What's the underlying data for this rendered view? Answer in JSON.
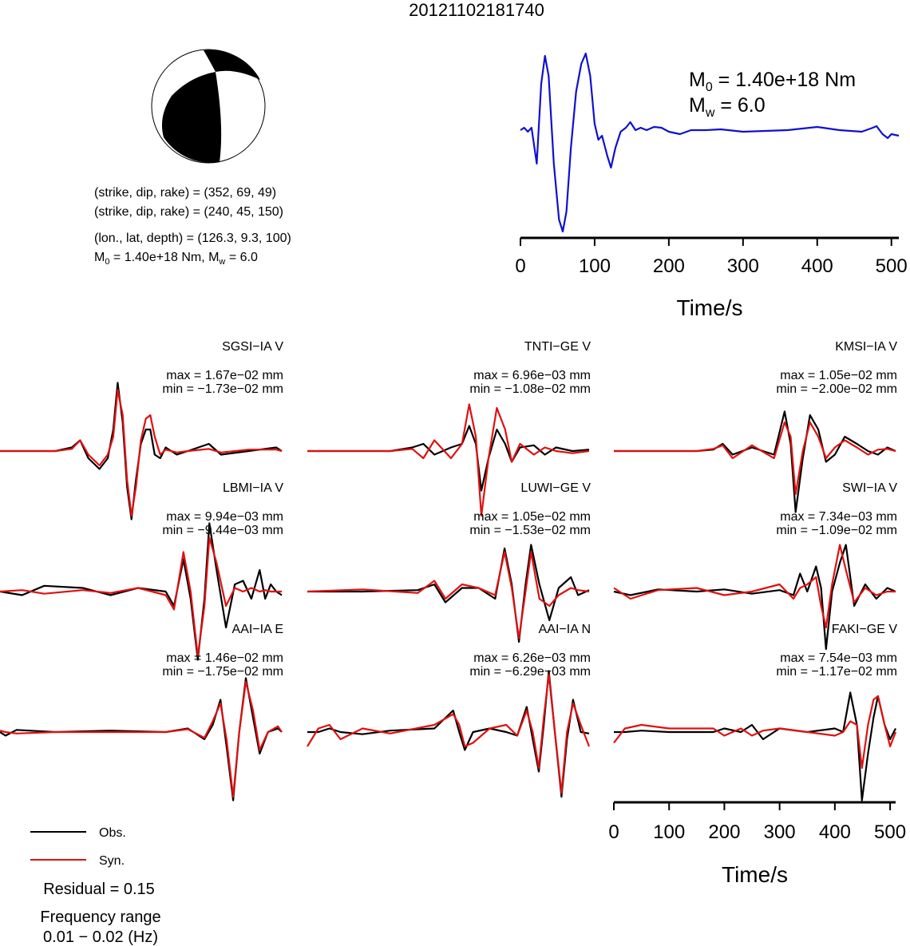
{
  "title": "20121102181740",
  "mechanism": {
    "lines": [
      "(strike, dip, rake) = (352, 69, 49)",
      "(strike, dip, rake) = (240, 45, 150)",
      "(lon., lat, depth) = (126.3, 9.3, 100)"
    ],
    "moment_line": [
      "M",
      "0",
      " = 1.40e+18 Nm, M",
      "w",
      " = 6.0"
    ]
  },
  "notes": [
    "Residual = 0.15",
    "Frequency range",
    "0.01 − 0.02 (Hz)"
  ],
  "chart_data": [
    {
      "type": "line",
      "xlabel": "Time/s",
      "xlim": [
        0,
        510
      ],
      "xticks": [
        0,
        100,
        200,
        300,
        400,
        500
      ],
      "ylim": [
        -1.33,
        1.05
      ],
      "annotations": [
        [
          "M",
          "0",
          " = 1.40e+18 Nm"
        ],
        [
          "M",
          "w",
          " = 6.0"
        ]
      ],
      "x": [
        0,
        5,
        10,
        15,
        22,
        28,
        33,
        38,
        45,
        52,
        57,
        62,
        68,
        75,
        82,
        88,
        94,
        100,
        105,
        110,
        117,
        122,
        128,
        135,
        142,
        148,
        155,
        162,
        170,
        180,
        190,
        200,
        215,
        230,
        250,
        270,
        300,
        330,
        360,
        400,
        430,
        460,
        475,
        480,
        488,
        495,
        500,
        510
      ],
      "series": [
        {
          "color": "#1010d0",
          "values": [
            0.02,
            0.05,
            0.0,
            0.05,
            -0.4,
            0.6,
            0.95,
            0.7,
            -0.4,
            -1.1,
            -1.25,
            -1.0,
            -0.2,
            0.5,
            0.85,
            0.98,
            0.7,
            0.1,
            -0.1,
            -0.05,
            -0.3,
            -0.45,
            -0.2,
            0.0,
            0.05,
            0.12,
            0.02,
            0.05,
            0.02,
            0.06,
            0.05,
            0.0,
            -0.03,
            0.02,
            0.02,
            0.03,
            0.0,
            0.01,
            0.02,
            0.06,
            0.02,
            0.0,
            0.05,
            0.07,
            -0.03,
            -0.08,
            -0.03,
            -0.05
          ]
        }
      ]
    },
    {
      "type": "line",
      "title": "SGSI−IA V",
      "annotations": [
        "max = 1.67e−02 mm",
        "min = −1.73e−02 mm"
      ],
      "xlim": [
        0,
        510
      ],
      "ylim": [
        -1,
        1
      ],
      "x": [
        0,
        100,
        130,
        145,
        160,
        180,
        195,
        205,
        213,
        222,
        230,
        238,
        246,
        255,
        264,
        272,
        280,
        290,
        300,
        320,
        340,
        378,
        400,
        450,
        500,
        510
      ],
      "series": [
        {
          "name": "Obs.",
          "color": "#000000",
          "values": [
            0,
            0,
            0.05,
            0.15,
            -0.1,
            -0.25,
            -0.1,
            0.3,
            0.95,
            0.4,
            -0.5,
            -0.95,
            -0.4,
            0.1,
            0.3,
            0.3,
            -0.05,
            -0.1,
            0.05,
            -0.05,
            0,
            0.1,
            -0.05,
            0,
            0.05,
            0
          ]
        },
        {
          "name": "Syn.",
          "color": "#e01010",
          "values": [
            0,
            0,
            0.03,
            0.15,
            -0.05,
            -0.2,
            -0.05,
            0.2,
            0.85,
            0.5,
            -0.4,
            -0.9,
            -0.5,
            0.15,
            0.45,
            0.5,
            0.2,
            -0.05,
            0.02,
            -0.02,
            0,
            0.03,
            -0.02,
            0.02,
            0.02,
            0
          ]
        }
      ]
    },
    {
      "type": "line",
      "title": "TNTI−GE V",
      "annotations": [
        "max = 6.96e−03 mm",
        "min = −1.08e−02 mm"
      ],
      "xlim": [
        0,
        510
      ],
      "ylim": [
        -1,
        1
      ],
      "x": [
        0,
        150,
        190,
        210,
        230,
        260,
        280,
        293,
        305,
        315,
        328,
        343,
        358,
        370,
        385,
        410,
        430,
        450,
        480,
        510
      ],
      "series": [
        {
          "color": "#000000",
          "values": [
            0,
            0,
            0.05,
            0.1,
            -0.05,
            0.05,
            0.1,
            0.35,
            0.1,
            -0.55,
            -0.1,
            0.3,
            0.1,
            -0.15,
            0.05,
            0.08,
            -0.05,
            0.05,
            0,
            0.02
          ]
        },
        {
          "color": "#e01010",
          "values": [
            0,
            0,
            0.03,
            -0.1,
            0.15,
            -0.1,
            0.1,
            0.65,
            0.2,
            -0.9,
            -0.1,
            0.6,
            0.3,
            -0.15,
            0.1,
            -0.05,
            0.05,
            0,
            -0.03,
            0
          ]
        }
      ]
    },
    {
      "type": "line",
      "title": "KMSI−IA V",
      "annotations": [
        "max = 1.05e−02 mm",
        "min = −2.00e−02 mm"
      ],
      "xlim": [
        0,
        510
      ],
      "ylim": [
        -1,
        1
      ],
      "x": [
        0,
        150,
        180,
        197,
        215,
        250,
        290,
        309,
        320,
        329,
        342,
        355,
        370,
        384,
        400,
        418,
        440,
        460,
        478,
        495,
        510
      ],
      "series": [
        {
          "color": "#000000",
          "values": [
            0,
            0,
            0.02,
            0.1,
            -0.05,
            0.05,
            -0.05,
            0.55,
            0.1,
            -0.85,
            -0.1,
            0.5,
            0.3,
            -0.15,
            -0.05,
            0.2,
            0.1,
            0.0,
            -0.05,
            0.05,
            0
          ]
        },
        {
          "color": "#e01010",
          "values": [
            0,
            0,
            0.03,
            0.08,
            -0.1,
            0.08,
            -0.1,
            0.4,
            0.2,
            -0.6,
            0.0,
            0.4,
            0.2,
            -0.1,
            0.05,
            0.15,
            0.05,
            -0.05,
            0.02,
            0.03,
            0
          ]
        }
      ]
    },
    {
      "type": "line",
      "title": "LBMI−IA V",
      "annotations": [
        "max = 9.94e−03 mm",
        "min = −9.44e−03 mm"
      ],
      "xlim": [
        0,
        510
      ],
      "ylim": [
        -1,
        1
      ],
      "x": [
        0,
        40,
        80,
        150,
        200,
        250,
        300,
        315,
        332,
        345,
        358,
        370,
        379,
        392,
        409,
        425,
        440,
        455,
        470,
        480,
        490,
        500,
        510
      ],
      "series": [
        {
          "color": "#000000",
          "values": [
            0,
            -0.05,
            0.08,
            0.05,
            -0.05,
            0.05,
            0.0,
            -0.2,
            0.45,
            -0.1,
            -0.95,
            -0.1,
            0.95,
            0.3,
            -0.5,
            0.1,
            0.15,
            -0.1,
            0.3,
            -0.1,
            0.1,
            0.0,
            -0.05
          ]
        },
        {
          "color": "#e01010",
          "values": [
            0,
            0.02,
            -0.03,
            0.02,
            -0.02,
            0.05,
            -0.05,
            -0.25,
            0.55,
            0.0,
            -0.9,
            -0.2,
            0.75,
            0.4,
            -0.2,
            0.05,
            0.0,
            0.05,
            0.0,
            0.02,
            0,
            0,
            0
          ]
        }
      ]
    },
    {
      "type": "line",
      "title": "LUWI−GE V",
      "annotations": [
        "max = 1.05e−02 mm",
        "min = −1.53e−02 mm"
      ],
      "xlim": [
        0,
        510
      ],
      "ylim": [
        -1,
        1
      ],
      "x": [
        0,
        100,
        200,
        230,
        250,
        280,
        310,
        340,
        357,
        370,
        383,
        395,
        405,
        420,
        438,
        455,
        477,
        490,
        510
      ],
      "series": [
        {
          "color": "#000000",
          "values": [
            0,
            0,
            0.02,
            0.1,
            -0.15,
            0.05,
            0.05,
            -0.1,
            0.6,
            0.1,
            -0.7,
            0.1,
            0.65,
            0.1,
            -0.4,
            0.05,
            0.2,
            -0.05,
            0.02
          ]
        },
        {
          "color": "#e01010",
          "values": [
            0,
            0.03,
            -0.02,
            0.15,
            -0.1,
            0.1,
            0.05,
            -0.05,
            0.55,
            0.05,
            -0.65,
            0.0,
            0.55,
            -0.1,
            -0.2,
            -0.05,
            0.05,
            0.02,
            0
          ]
        }
      ]
    },
    {
      "type": "line",
      "title": "SWI−IA V",
      "annotations": [
        "max = 7.34e−03 mm",
        "min = −1.09e−02 mm"
      ],
      "xlim": [
        0,
        510
      ],
      "ylim": [
        -1,
        1
      ],
      "x": [
        0,
        30,
        80,
        150,
        200,
        250,
        300,
        325,
        337,
        350,
        366,
        375,
        384,
        395,
        409,
        420,
        435,
        455,
        475,
        495,
        510
      ],
      "series": [
        {
          "color": "#000000",
          "values": [
            0,
            -0.05,
            0.03,
            0.0,
            0.03,
            -0.03,
            0.02,
            -0.05,
            0.25,
            0.0,
            0.35,
            0.05,
            -0.8,
            0.0,
            0.4,
            0.65,
            -0.2,
            0.1,
            -0.1,
            0.05,
            0
          ]
        },
        {
          "color": "#e01010",
          "values": [
            0.05,
            -0.1,
            0.02,
            0.05,
            -0.05,
            0.0,
            0.1,
            -0.1,
            0.05,
            0.1,
            0.2,
            -0.2,
            -0.5,
            0.1,
            0.65,
            0.3,
            -0.15,
            0.05,
            -0.05,
            0.0,
            0
          ]
        }
      ]
    },
    {
      "type": "line",
      "title": "AAI−IA E",
      "annotations": [
        "max = 1.46e−02 mm",
        "min = −1.75e−02 mm"
      ],
      "xlim": [
        0,
        510
      ],
      "ylim": [
        -1,
        1
      ],
      "x": [
        0,
        10,
        30,
        100,
        200,
        300,
        340,
        370,
        385,
        399,
        410,
        422,
        433,
        445,
        458,
        470,
        485,
        503,
        510
      ],
      "series": [
        {
          "color": "#000000",
          "values": [
            0,
            -0.05,
            0.03,
            0,
            0.02,
            0,
            0.05,
            -0.1,
            0.1,
            0.45,
            -0.2,
            -0.95,
            0.0,
            0.75,
            0.2,
            -0.3,
            0.0,
            0.05,
            0
          ]
        },
        {
          "color": "#e01010",
          "values": [
            0.02,
            0.0,
            -0.02,
            0,
            0,
            0,
            0.04,
            -0.08,
            0.15,
            0.4,
            -0.1,
            -0.9,
            0.0,
            0.7,
            0.3,
            -0.25,
            0.0,
            0.08,
            0
          ]
        }
      ]
    },
    {
      "type": "line",
      "title": "AAI−IA N",
      "annotations": [
        "max = 6.26e−03 mm",
        "min = −6.29e−03 mm"
      ],
      "xlim": [
        0,
        510
      ],
      "ylim": [
        -1,
        1
      ],
      "x": [
        0,
        20,
        40,
        60,
        100,
        150,
        230,
        264,
        275,
        285,
        300,
        330,
        360,
        380,
        397,
        408,
        419,
        428,
        437,
        448,
        460,
        470,
        481,
        495,
        510
      ],
      "series": [
        {
          "color": "#000000",
          "values": [
            0,
            0,
            0.05,
            0.0,
            -0.03,
            0.02,
            0.05,
            0.3,
            0.0,
            -0.25,
            0.0,
            0.05,
            0.0,
            -0.05,
            0.35,
            -0.1,
            -0.55,
            0.1,
            0.85,
            0.0,
            -0.9,
            -0.1,
            0.45,
            0.0,
            -0.02
          ]
        },
        {
          "color": "#e01010",
          "values": [
            -0.2,
            0.05,
            0.1,
            -0.1,
            0.05,
            -0.02,
            0.1,
            0.25,
            0.1,
            -0.2,
            -0.15,
            0.05,
            0.1,
            -0.05,
            0.3,
            0.0,
            -0.5,
            0.2,
            0.8,
            0.0,
            -0.85,
            0.0,
            0.4,
            0.1,
            -0.2
          ]
        }
      ]
    },
    {
      "type": "line",
      "title": "FAKI−GE V",
      "annotations": [
        "max = 7.54e−03 mm",
        "min = −1.17e−02 mm"
      ],
      "xlabel": "Time/s",
      "xlim": [
        0,
        510
      ],
      "xticks": [
        0,
        100,
        200,
        300,
        400,
        500
      ],
      "ylim": [
        -1,
        1
      ],
      "x": [
        0,
        20,
        50,
        100,
        180,
        200,
        230,
        250,
        270,
        300,
        350,
        400,
        415,
        428,
        440,
        449,
        460,
        470,
        478,
        490,
        500,
        510
      ],
      "series": [
        {
          "color": "#000000",
          "values": [
            0,
            0,
            0.02,
            0,
            0,
            0.05,
            0.0,
            0.1,
            -0.1,
            0.05,
            0.0,
            0.05,
            0.0,
            0.55,
            0.1,
            -0.95,
            -0.3,
            0.2,
            0.5,
            0.1,
            -0.1,
            0.05
          ]
        },
        {
          "color": "#e01010",
          "values": [
            -0.15,
            0.05,
            0.1,
            0.05,
            0.05,
            -0.05,
            0.05,
            -0.05,
            0.02,
            0.05,
            0.0,
            -0.05,
            0.0,
            0.15,
            0.1,
            -0.5,
            0.1,
            0.45,
            0.5,
            0.1,
            -0.2,
            0.0
          ]
        }
      ]
    }
  ]
}
